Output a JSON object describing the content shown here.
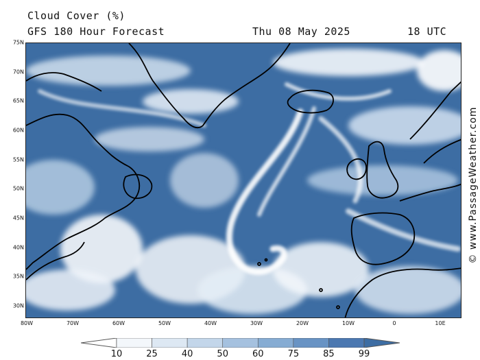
{
  "header": {
    "title": "Cloud Cover (%)",
    "subtitle": "GFS 180 Hour Forecast",
    "date": "Thu 08 May 2025",
    "time": "18 UTC"
  },
  "watermark": "© www.PassageWeather.com",
  "axes": {
    "latitudes": [
      "75N",
      "70N",
      "65N",
      "60N",
      "55N",
      "50N",
      "45N",
      "40N",
      "35N",
      "30N"
    ],
    "longitudes": [
      "80W",
      "70W",
      "60W",
      "50W",
      "40W",
      "30W",
      "20W",
      "10W",
      "0",
      "10E"
    ]
  },
  "legend": {
    "levels": [
      "10",
      "25",
      "40",
      "50",
      "60",
      "75",
      "85",
      "99"
    ],
    "colors": [
      "#ffffff",
      "#f3f7fb",
      "#dde8f3",
      "#c3d6ea",
      "#a5c1df",
      "#86acd3",
      "#6893c4",
      "#4b78b1",
      "#3d6da3"
    ]
  },
  "colors": {
    "ocean_cloud_base": "#3d6da3",
    "cloud_white": "#ffffff",
    "coastline": "#000000"
  }
}
